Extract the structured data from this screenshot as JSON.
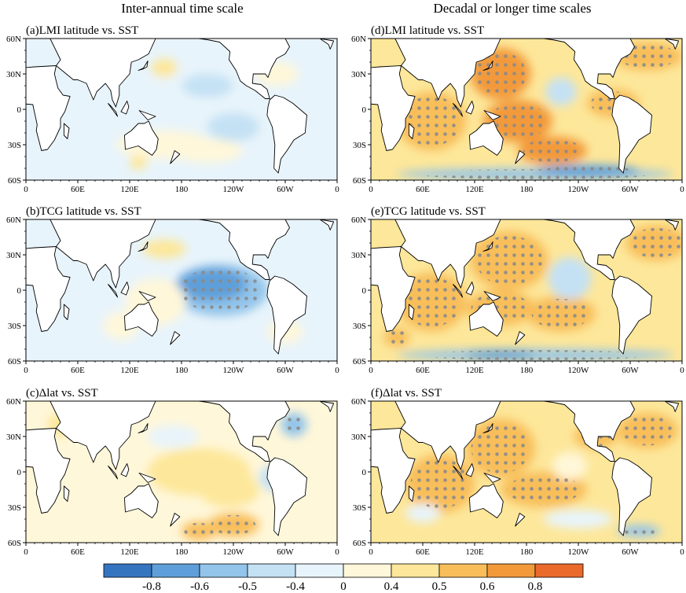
{
  "column_titles": [
    "Inter-annual time scale",
    "Decadal or longer time scales"
  ],
  "panels": [
    {
      "label": "(a)LMI latitude vs. SST",
      "pattern": "a"
    },
    {
      "label": "(d)LMI latitude vs. SST",
      "pattern": "d"
    },
    {
      "label": "(b)TCG latitude vs. SST",
      "pattern": "b"
    },
    {
      "label": "(e)TCG latitude vs. SST",
      "pattern": "e"
    },
    {
      "label": "(c)Δlat vs. SST",
      "pattern": "c"
    },
    {
      "label": "(f)Δlat vs. SST",
      "pattern": "f"
    }
  ],
  "lat_ticks": [
    "60N",
    "30N",
    "0",
    "30S",
    "60S"
  ],
  "lon_ticks": [
    "0",
    "60E",
    "120E",
    "180",
    "120W",
    "60W",
    "0"
  ],
  "colorbar": {
    "colors": [
      "#3575c0",
      "#5f9fd9",
      "#93c4ea",
      "#c4e1f4",
      "#e8f4fb",
      "#fff7d9",
      "#fde79a",
      "#f8be5a",
      "#f29a3a",
      "#ea6a2c"
    ],
    "labels": [
      "-0.8",
      "-0.6",
      "-0.5",
      "-0.4",
      "0",
      "0.4",
      "0.5",
      "0.6",
      "0.8"
    ],
    "label_positions": [
      1,
      2,
      3,
      4,
      5,
      6,
      7,
      8,
      9
    ]
  },
  "colors": {
    "land": "#ffffff",
    "coast": "#000000",
    "stipple": "#8a8a8a"
  }
}
